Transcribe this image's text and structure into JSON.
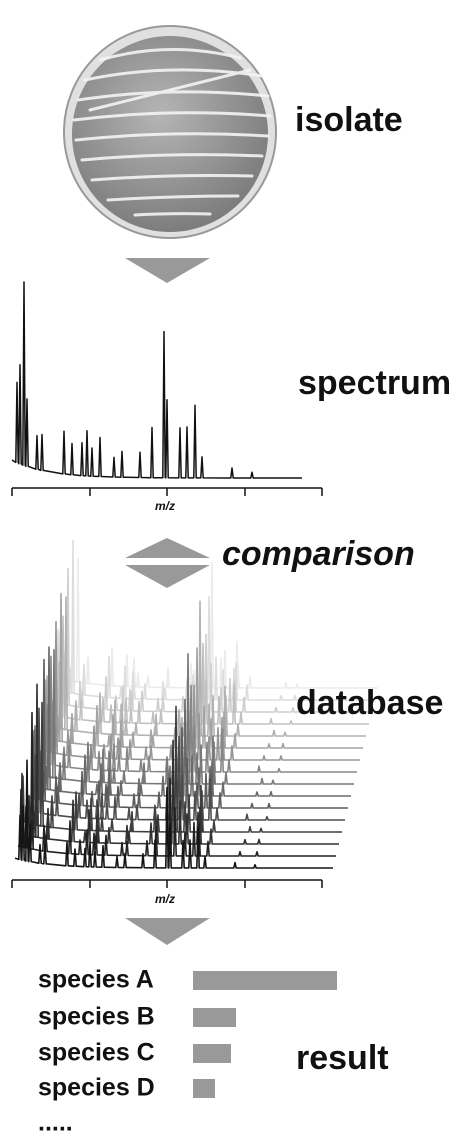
{
  "steps": {
    "isolate": "isolate",
    "spectrum": "spectrum",
    "comparison": "comparison",
    "database": "database",
    "result": "result"
  },
  "axis_labels": [
    "m/z",
    "m/z"
  ],
  "results": [
    "species A",
    "species B",
    "species C",
    "species D"
  ],
  "more": "....."
}
